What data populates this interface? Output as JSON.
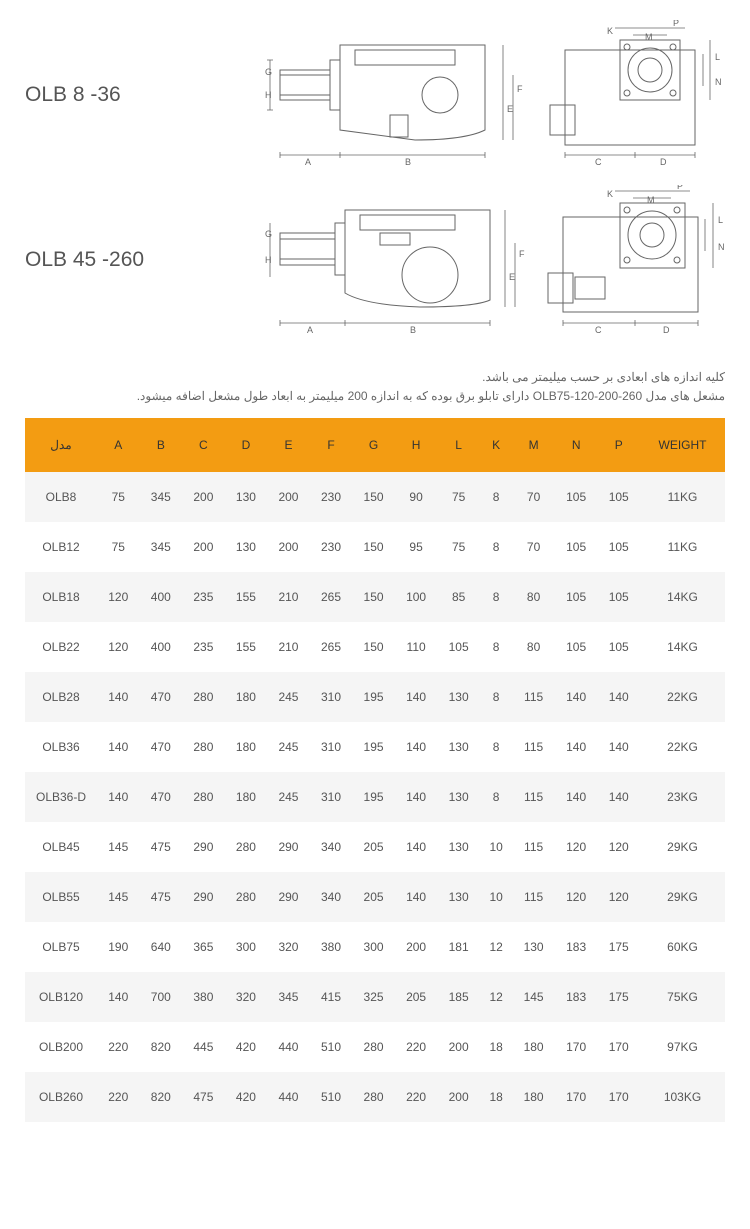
{
  "diagrams": [
    {
      "label": "OLB 8 -36"
    },
    {
      "label": "OLB 45 -260"
    }
  ],
  "notes": [
    "کلیه اندازه های ابعادی بر حسب میلیمتر می باشد.",
    "مشعل های مدل OLB75-120-200-260 دارای تابلو برق بوده که به اندازه 200 میلیمتر  به ابعاد طول مشعل اضافه میشود."
  ],
  "table": {
    "columns": [
      "مدل",
      "A",
      "B",
      "C",
      "D",
      "E",
      "F",
      "G",
      "H",
      "L",
      "K",
      "M",
      "N",
      "P",
      "WEIGHT"
    ],
    "rows": [
      [
        "OLB8",
        "75",
        "345",
        "200",
        "130",
        "200",
        "230",
        "150",
        "90",
        "75",
        "8",
        "70",
        "105",
        "105",
        "11KG"
      ],
      [
        "OLB12",
        "75",
        "345",
        "200",
        "130",
        "200",
        "230",
        "150",
        "95",
        "75",
        "8",
        "70",
        "105",
        "105",
        "11KG"
      ],
      [
        "OLB18",
        "120",
        "400",
        "235",
        "155",
        "210",
        "265",
        "150",
        "100",
        "85",
        "8",
        "80",
        "105",
        "105",
        "14KG"
      ],
      [
        "OLB22",
        "120",
        "400",
        "235",
        "155",
        "210",
        "265",
        "150",
        "110",
        "105",
        "8",
        "80",
        "105",
        "105",
        "14KG"
      ],
      [
        "OLB28",
        "140",
        "470",
        "280",
        "180",
        "245",
        "310",
        "195",
        "140",
        "130",
        "8",
        "115",
        "140",
        "140",
        "22KG"
      ],
      [
        "OLB36",
        "140",
        "470",
        "280",
        "180",
        "245",
        "310",
        "195",
        "140",
        "130",
        "8",
        "115",
        "140",
        "140",
        "22KG"
      ],
      [
        "OLB36-D",
        "140",
        "470",
        "280",
        "180",
        "245",
        "310",
        "195",
        "140",
        "130",
        "8",
        "115",
        "140",
        "140",
        "23KG"
      ],
      [
        "OLB45",
        "145",
        "475",
        "290",
        "280",
        "290",
        "340",
        "205",
        "140",
        "130",
        "10",
        "115",
        "120",
        "120",
        "29KG"
      ],
      [
        "OLB55",
        "145",
        "475",
        "290",
        "280",
        "290",
        "340",
        "205",
        "140",
        "130",
        "10",
        "115",
        "120",
        "120",
        "29KG"
      ],
      [
        "OLB75",
        "190",
        "640",
        "365",
        "300",
        "320",
        "380",
        "300",
        "200",
        "181",
        "12",
        "130",
        "183",
        "175",
        "60KG"
      ],
      [
        "OLB120",
        "140",
        "700",
        "380",
        "320",
        "345",
        "415",
        "325",
        "205",
        "185",
        "12",
        "145",
        "183",
        "175",
        "75KG"
      ],
      [
        "OLB200",
        "220",
        "820",
        "445",
        "420",
        "440",
        "510",
        "280",
        "220",
        "200",
        "18",
        "180",
        "170",
        "170",
        "97KG"
      ],
      [
        "OLB260",
        "220",
        "820",
        "475",
        "420",
        "440",
        "510",
        "280",
        "220",
        "200",
        "18",
        "180",
        "170",
        "170",
        "103KG"
      ]
    ],
    "header_bg": "#f39c12",
    "row_odd_bg": "#f5f5f5",
    "row_even_bg": "#ffffff"
  },
  "dim_letters": {
    "side": [
      "G",
      "H",
      "A",
      "B",
      "F",
      "E"
    ],
    "front": [
      "K",
      "M",
      "P",
      "L",
      "N",
      "C",
      "D"
    ]
  }
}
